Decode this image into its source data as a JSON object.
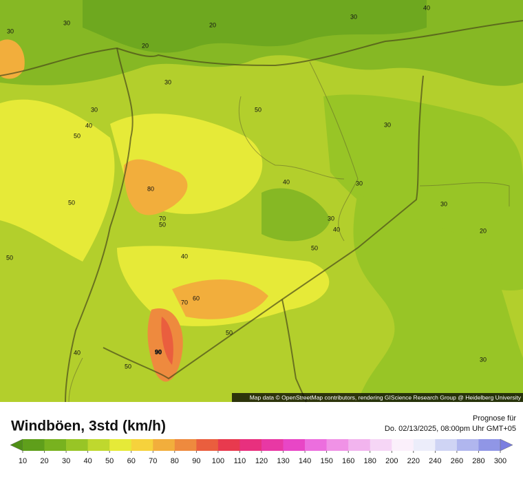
{
  "map": {
    "attribution": "Map data © OpenStreetMap contributors, rendering GIScience Research Group @ Heidelberg University",
    "contour_labels": [
      "30",
      "30",
      "20",
      "20",
      "30",
      "40",
      "30",
      "30",
      "50",
      "40",
      "50",
      "30",
      "80",
      "40",
      "30",
      "50",
      "30",
      "70",
      "50",
      "30",
      "40",
      "20",
      "50",
      "50",
      "40",
      "60",
      "70",
      "50",
      "90",
      "40",
      "50",
      "30"
    ]
  },
  "legend": {
    "title": "Windböen, 3std (km/h)",
    "forecast_label": "Prognose für",
    "forecast_time": "Do. 02/13/2025, 08:00pm Uhr GMT+05",
    "ticks": [
      10,
      20,
      30,
      40,
      50,
      60,
      70,
      80,
      90,
      100,
      110,
      120,
      130,
      140,
      150,
      160,
      180,
      200,
      220,
      240,
      260,
      280,
      300
    ],
    "colors": [
      "#4f8f17",
      "#5f9f1b",
      "#78b21f",
      "#98c526",
      "#bfd82e",
      "#e6ea38",
      "#f6d23c",
      "#f2ae3c",
      "#ee8a3e",
      "#ea5e3e",
      "#e83a4e",
      "#e8307e",
      "#e838a4",
      "#e846c6",
      "#ec6ede",
      "#f092e6",
      "#f2b4ee",
      "#f6d6f6",
      "#fbf0fb",
      "#ecedfa",
      "#cfd4f4",
      "#b0b6ee",
      "#9096e6",
      "#7a7ee0"
    ]
  }
}
